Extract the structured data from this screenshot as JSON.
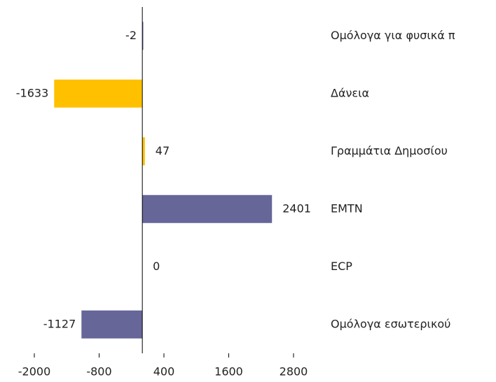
{
  "chart_data": {
    "type": "hbar",
    "categories": [
      "Ομόλογα για φυσικά π",
      "Δάνεια",
      "Γραμμάτια Δημοσίου",
      "EMTN",
      "ECP",
      "Ομόλογα εσωτερικού"
    ],
    "values": [
      -2,
      -1633,
      47,
      2401,
      0,
      -1127
    ],
    "colors": [
      "#666699",
      "#ffc000",
      "#ffc000",
      "#666699",
      "#666699",
      "#666699"
    ],
    "xlim": [
      -2000,
      2800
    ],
    "xticks": [
      -2000,
      -800,
      400,
      1600,
      2800
    ]
  }
}
